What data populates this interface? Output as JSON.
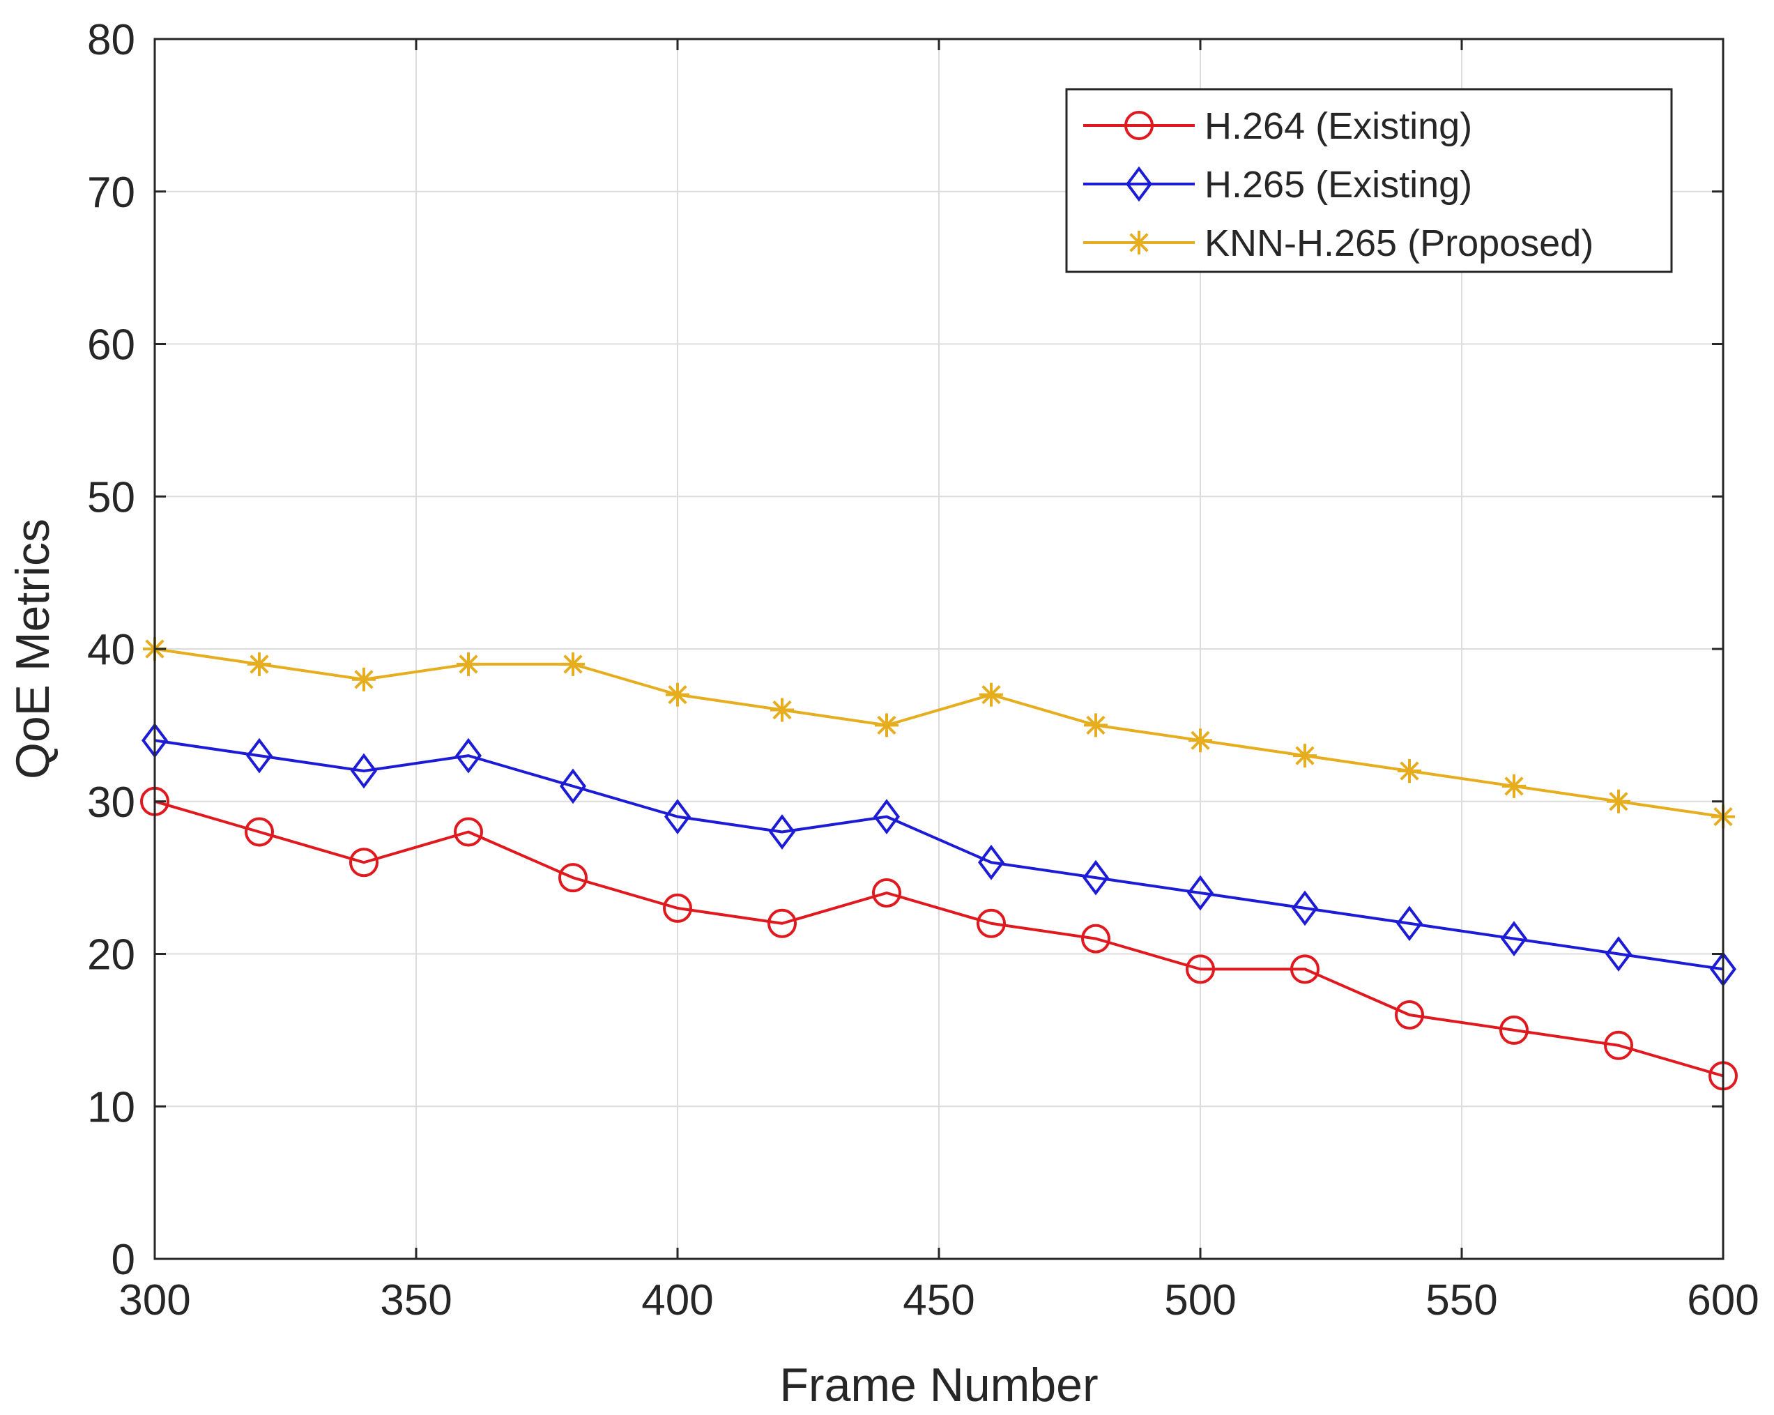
{
  "chart_data": {
    "type": "line",
    "title": "",
    "xlabel": "Frame Number",
    "ylabel": "QoE Metrics",
    "xlim": [
      300,
      600
    ],
    "ylim": [
      0,
      80
    ],
    "xticks": [
      300,
      350,
      400,
      450,
      500,
      550,
      600
    ],
    "yticks": [
      0,
      10,
      20,
      30,
      40,
      50,
      60,
      70,
      80
    ],
    "grid": true,
    "legend_position": "top-right",
    "x": [
      300,
      320,
      340,
      360,
      380,
      400,
      420,
      440,
      460,
      480,
      500,
      520,
      540,
      560,
      580,
      600
    ],
    "series": [
      {
        "name": "H.264 (Existing)",
        "color": "#e0191e",
        "marker": "circle",
        "values": [
          30,
          28,
          26,
          28,
          25,
          23,
          22,
          24,
          22,
          21,
          19,
          19,
          16,
          15,
          14,
          12
        ]
      },
      {
        "name": "H.265 (Existing)",
        "color": "#1c1cd6",
        "marker": "diamond",
        "values": [
          34,
          33,
          32,
          33,
          31,
          29,
          28,
          29,
          26,
          25,
          24,
          23,
          22,
          21,
          20,
          19
        ]
      },
      {
        "name": "KNN-H.265 (Proposed)",
        "color": "#e6ad1e",
        "marker": "asterisk",
        "values": [
          40,
          39,
          38,
          39,
          39,
          37,
          36,
          35,
          37,
          35,
          34,
          33,
          32,
          31,
          30,
          29
        ]
      }
    ]
  }
}
